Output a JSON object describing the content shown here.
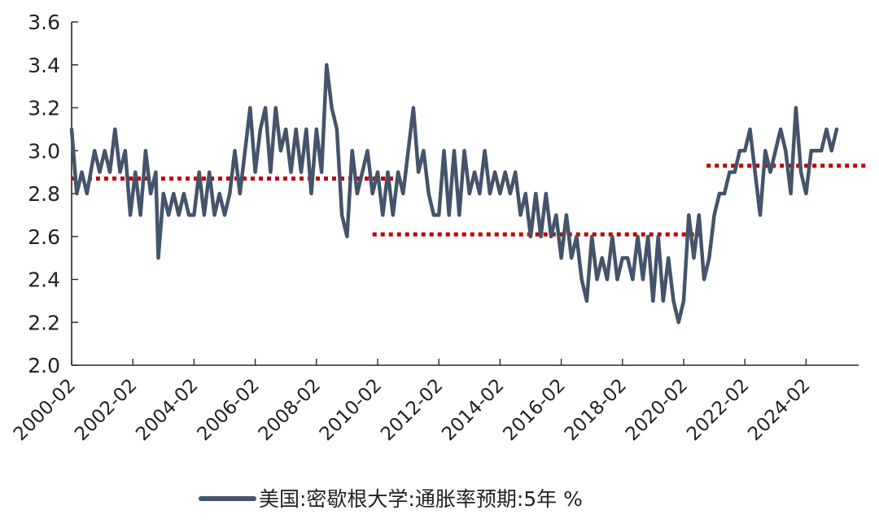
{
  "colors": {
    "series": "#44546a",
    "reference": "#c00000",
    "axis": "#262626"
  },
  "chart_data": {
    "type": "line",
    "title": "",
    "xlabel": "",
    "ylabel": "",
    "x_range": [
      "2000-02",
      "2025-02"
    ],
    "ylim": [
      2.0,
      3.6
    ],
    "y_ticks": [
      "2.0",
      "2.2",
      "2.4",
      "2.6",
      "2.8",
      "3.0",
      "3.2",
      "3.4",
      "3.6"
    ],
    "x_ticks": [
      "2000-02",
      "2002-02",
      "2004-02",
      "2006-02",
      "2008-02",
      "2010-02",
      "2012-02",
      "2014-02",
      "2016-02",
      "2018-02",
      "2020-02",
      "2022-02",
      "2024-02"
    ],
    "grid": false,
    "legend_position": "bottom-center",
    "series": [
      {
        "name": "美国:密歇根大学:通胀率预期:5年  %",
        "points": [
          [
            "2000-02",
            3.1
          ],
          [
            "2000-04",
            2.8
          ],
          [
            "2000-06",
            2.9
          ],
          [
            "2000-08",
            2.8
          ],
          [
            "2000-11",
            3.0
          ],
          [
            "2001-01",
            2.9
          ],
          [
            "2001-03",
            3.0
          ],
          [
            "2001-05",
            2.9
          ],
          [
            "2001-07",
            3.1
          ],
          [
            "2001-09",
            2.9
          ],
          [
            "2001-11",
            3.0
          ],
          [
            "2002-01",
            2.7
          ],
          [
            "2002-03",
            2.9
          ],
          [
            "2002-05",
            2.7
          ],
          [
            "2002-07",
            3.0
          ],
          [
            "2002-09",
            2.8
          ],
          [
            "2002-11",
            2.9
          ],
          [
            "2002-12",
            2.5
          ],
          [
            "2003-02",
            2.8
          ],
          [
            "2003-04",
            2.7
          ],
          [
            "2003-06",
            2.8
          ],
          [
            "2003-08",
            2.7
          ],
          [
            "2003-10",
            2.8
          ],
          [
            "2003-12",
            2.7
          ],
          [
            "2004-02",
            2.7
          ],
          [
            "2004-04",
            2.9
          ],
          [
            "2004-06",
            2.7
          ],
          [
            "2004-08",
            2.9
          ],
          [
            "2004-10",
            2.7
          ],
          [
            "2004-12",
            2.8
          ],
          [
            "2005-02",
            2.7
          ],
          [
            "2005-04",
            2.8
          ],
          [
            "2005-06",
            3.0
          ],
          [
            "2005-08",
            2.8
          ],
          [
            "2005-10",
            3.0
          ],
          [
            "2005-12",
            3.2
          ],
          [
            "2006-02",
            2.9
          ],
          [
            "2006-04",
            3.1
          ],
          [
            "2006-06",
            3.2
          ],
          [
            "2006-08",
            2.9
          ],
          [
            "2006-10",
            3.2
          ],
          [
            "2006-12",
            3.0
          ],
          [
            "2007-02",
            3.1
          ],
          [
            "2007-04",
            2.9
          ],
          [
            "2007-06",
            3.1
          ],
          [
            "2007-08",
            2.9
          ],
          [
            "2007-10",
            3.1
          ],
          [
            "2007-12",
            2.8
          ],
          [
            "2008-02",
            3.1
          ],
          [
            "2008-04",
            2.9
          ],
          [
            "2008-06",
            3.4
          ],
          [
            "2008-08",
            3.2
          ],
          [
            "2008-10",
            3.1
          ],
          [
            "2008-12",
            2.7
          ],
          [
            "2009-02",
            2.6
          ],
          [
            "2009-04",
            3.0
          ],
          [
            "2009-06",
            2.8
          ],
          [
            "2009-08",
            2.9
          ],
          [
            "2009-10",
            3.0
          ],
          [
            "2009-12",
            2.8
          ],
          [
            "2010-02",
            2.9
          ],
          [
            "2010-04",
            2.7
          ],
          [
            "2010-06",
            2.9
          ],
          [
            "2010-08",
            2.7
          ],
          [
            "2010-10",
            2.9
          ],
          [
            "2010-12",
            2.8
          ],
          [
            "2011-02",
            3.0
          ],
          [
            "2011-04",
            3.2
          ],
          [
            "2011-06",
            2.9
          ],
          [
            "2011-08",
            3.0
          ],
          [
            "2011-10",
            2.8
          ],
          [
            "2011-12",
            2.7
          ],
          [
            "2012-02",
            2.7
          ],
          [
            "2012-04",
            3.0
          ],
          [
            "2012-06",
            2.7
          ],
          [
            "2012-08",
            3.0
          ],
          [
            "2012-10",
            2.7
          ],
          [
            "2012-12",
            3.0
          ],
          [
            "2013-02",
            2.8
          ],
          [
            "2013-04",
            2.9
          ],
          [
            "2013-06",
            2.8
          ],
          [
            "2013-08",
            3.0
          ],
          [
            "2013-10",
            2.8
          ],
          [
            "2013-12",
            2.9
          ],
          [
            "2014-02",
            2.8
          ],
          [
            "2014-04",
            2.9
          ],
          [
            "2014-06",
            2.8
          ],
          [
            "2014-08",
            2.9
          ],
          [
            "2014-10",
            2.7
          ],
          [
            "2014-12",
            2.8
          ],
          [
            "2015-02",
            2.6
          ],
          [
            "2015-04",
            2.8
          ],
          [
            "2015-06",
            2.6
          ],
          [
            "2015-08",
            2.8
          ],
          [
            "2015-10",
            2.6
          ],
          [
            "2015-12",
            2.7
          ],
          [
            "2016-02",
            2.5
          ],
          [
            "2016-04",
            2.7
          ],
          [
            "2016-06",
            2.5
          ],
          [
            "2016-08",
            2.6
          ],
          [
            "2016-10",
            2.4
          ],
          [
            "2016-12",
            2.3
          ],
          [
            "2017-02",
            2.6
          ],
          [
            "2017-04",
            2.4
          ],
          [
            "2017-06",
            2.5
          ],
          [
            "2017-08",
            2.4
          ],
          [
            "2017-10",
            2.6
          ],
          [
            "2017-12",
            2.4
          ],
          [
            "2018-02",
            2.5
          ],
          [
            "2018-04",
            2.5
          ],
          [
            "2018-06",
            2.4
          ],
          [
            "2018-08",
            2.6
          ],
          [
            "2018-10",
            2.4
          ],
          [
            "2018-12",
            2.6
          ],
          [
            "2019-02",
            2.3
          ],
          [
            "2019-04",
            2.6
          ],
          [
            "2019-06",
            2.3
          ],
          [
            "2019-08",
            2.5
          ],
          [
            "2019-10",
            2.3
          ],
          [
            "2019-12",
            2.2
          ],
          [
            "2020-02",
            2.3
          ],
          [
            "2020-04",
            2.7
          ],
          [
            "2020-06",
            2.5
          ],
          [
            "2020-08",
            2.7
          ],
          [
            "2020-10",
            2.4
          ],
          [
            "2020-12",
            2.5
          ],
          [
            "2021-02",
            2.7
          ],
          [
            "2021-04",
            2.8
          ],
          [
            "2021-06",
            2.8
          ],
          [
            "2021-08",
            2.9
          ],
          [
            "2021-10",
            2.9
          ],
          [
            "2021-12",
            3.0
          ],
          [
            "2022-02",
            3.0
          ],
          [
            "2022-04",
            3.1
          ],
          [
            "2022-06",
            2.9
          ],
          [
            "2022-08",
            2.7
          ],
          [
            "2022-10",
            3.0
          ],
          [
            "2022-12",
            2.9
          ],
          [
            "2023-02",
            3.0
          ],
          [
            "2023-04",
            3.1
          ],
          [
            "2023-06",
            3.0
          ],
          [
            "2023-08",
            2.8
          ],
          [
            "2023-10",
            3.2
          ],
          [
            "2023-12",
            2.9
          ],
          [
            "2024-02",
            2.8
          ],
          [
            "2024-04",
            3.0
          ],
          [
            "2024-06",
            3.0
          ],
          [
            "2024-08",
            3.0
          ],
          [
            "2024-10",
            3.1
          ],
          [
            "2024-12",
            3.0
          ],
          [
            "2025-02",
            3.1
          ]
        ]
      }
    ],
    "reference_lines": [
      {
        "x_start": "2000-02",
        "x_end": "2010-09",
        "y": 2.87
      },
      {
        "x_start": "2009-12",
        "x_end": "2020-09",
        "y": 2.61
      },
      {
        "x_start": "2020-11",
        "x_end": "2026-02",
        "y": 2.93
      }
    ]
  }
}
